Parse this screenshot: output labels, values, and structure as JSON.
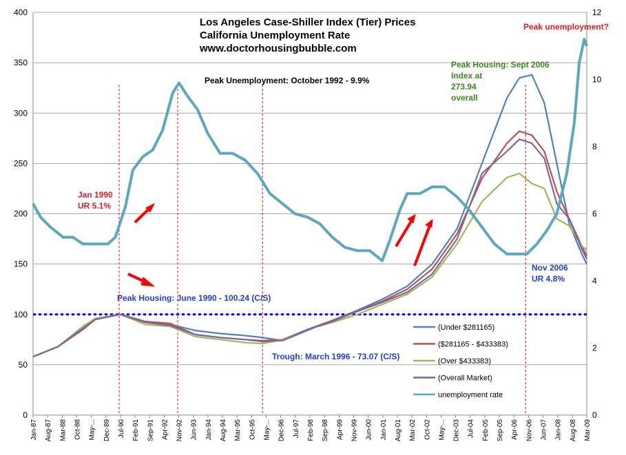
{
  "chart_data": {
    "type": "line",
    "title": [
      "Los Angeles Case-Shiller Index (Tier) Prices",
      "California Unemployment Rate",
      "www.doctorhousingbubble.com"
    ],
    "x_tick_labels": [
      "Jan-87",
      "Aug-87",
      "Mar-88",
      "Oct-88",
      "May-...",
      "Dec-89",
      "Jul-90",
      "Feb-91",
      "Sep-91",
      "Apr-92",
      "Nov-92",
      "Jun-93",
      "Jan-94",
      "Aug-94",
      "Mar-95",
      "Oct-95",
      "May-...",
      "Dec-96",
      "Jul-97",
      "Feb-98",
      "Sep-98",
      "Apr-99",
      "Nov-99",
      "Jun-00",
      "Jan-01",
      "Aug-01",
      "Mar-02",
      "Oct-02",
      "May-...",
      "Dec-03",
      "Jul-04",
      "Feb-05",
      "Sep-05",
      "Apr-06",
      "Nov-06",
      "Jun-07",
      "Jan-08",
      "Aug-08",
      "Mar-09"
    ],
    "y_left": {
      "min": 0,
      "max": 400,
      "ticks": [
        0,
        50,
        100,
        150,
        200,
        250,
        300,
        350,
        400
      ]
    },
    "y_right": {
      "min": 0,
      "max": 12,
      "ticks": [
        0,
        2,
        4,
        6,
        8,
        10,
        12
      ]
    },
    "grid": "horizontal",
    "legend_position": "inside-bottom-right",
    "series": [
      {
        "name": "(Under $281165)",
        "axis": "left",
        "color": "#4f81bd",
        "x": [
          1987.0,
          1988.0,
          1989.0,
          1989.5,
          1990.5,
          1991.5,
          1992.5,
          1993.5,
          1994.5,
          1995.5,
          1996.2,
          1997.0,
          1998.0,
          1999.0,
          2000.0,
          2001.0,
          2002.0,
          2003.0,
          2004.0,
          2005.0,
          2006.0,
          2006.5,
          2007.0,
          2007.5,
          2008.0,
          2008.5,
          2009.0,
          2009.2
        ],
        "values": [
          58,
          68,
          88,
          96,
          100,
          93,
          90,
          84,
          81,
          79,
          77,
          74,
          84,
          94,
          104,
          115,
          128,
          150,
          185,
          250,
          315,
          335,
          338,
          310,
          250,
          190,
          160,
          150
        ]
      },
      {
        "name": "($281165 - $433383)",
        "axis": "left",
        "color": "#c0504d",
        "x": [
          1987.0,
          1988.0,
          1989.0,
          1989.5,
          1990.5,
          1991.5,
          1992.5,
          1993.5,
          1994.5,
          1995.5,
          1996.2,
          1997.0,
          1998.0,
          1999.0,
          2000.0,
          2001.0,
          2002.0,
          2003.0,
          2004.0,
          2005.0,
          2006.0,
          2006.5,
          2007.0,
          2007.5,
          2008.0,
          2008.5,
          2009.0,
          2009.2
        ],
        "values": [
          58,
          68,
          85,
          95,
          100,
          93,
          91,
          80,
          77,
          75,
          74,
          75,
          85,
          94,
          103,
          113,
          125,
          145,
          180,
          235,
          270,
          282,
          278,
          262,
          222,
          195,
          168,
          158
        ]
      },
      {
        "name": "(Over $433383)",
        "axis": "left",
        "color": "#9bbb59",
        "x": [
          1987.0,
          1988.0,
          1989.0,
          1989.5,
          1990.5,
          1991.5,
          1992.5,
          1993.5,
          1994.5,
          1995.5,
          1996.2,
          1997.0,
          1998.0,
          1999.0,
          2000.0,
          2001.0,
          2002.0,
          2003.0,
          2004.0,
          2005.0,
          2006.0,
          2006.5,
          2007.0,
          2007.5,
          2008.0,
          2008.5,
          2009.0,
          2009.2
        ],
        "values": [
          58,
          68,
          88,
          96,
          100,
          90,
          88,
          78,
          75,
          72,
          71,
          75,
          85,
          92,
          100,
          110,
          120,
          137,
          170,
          212,
          236,
          240,
          230,
          225,
          195,
          188,
          168,
          164
        ]
      },
      {
        "name": "(Overall Market)",
        "axis": "left",
        "color": "#8064a2",
        "x": [
          1987.0,
          1988.0,
          1989.0,
          1989.5,
          1990.5,
          1991.5,
          1992.5,
          1993.5,
          1994.5,
          1995.5,
          1996.2,
          1997.0,
          1998.0,
          1999.0,
          2000.0,
          2001.0,
          2002.0,
          2003.0,
          2004.0,
          2005.0,
          2006.0,
          2006.5,
          2007.0,
          2007.5,
          2008.0,
          2008.5,
          2009.0,
          2009.2
        ],
        "values": [
          58,
          68,
          86,
          95,
          100,
          92,
          89,
          80,
          77,
          75,
          73,
          74,
          85,
          93,
          103,
          112,
          122,
          140,
          175,
          240,
          262,
          274,
          270,
          255,
          210,
          195,
          165,
          155
        ]
      },
      {
        "name": "unemployment rate",
        "axis": "right",
        "color": "#4bacc6",
        "x": [
          1987.0,
          1987.3,
          1987.7,
          1988.2,
          1988.6,
          1989.0,
          1989.5,
          1990.0,
          1990.3,
          1990.7,
          1991.0,
          1991.4,
          1991.8,
          1992.2,
          1992.6,
          1992.85,
          1993.2,
          1993.6,
          1994.0,
          1994.5,
          1995.0,
          1995.5,
          1996.0,
          1996.5,
          1997.0,
          1997.5,
          1998.0,
          1998.5,
          1999.0,
          1999.5,
          2000.0,
          2000.5,
          2001.0,
          2001.3,
          2001.7,
          2002.0,
          2002.5,
          2003.0,
          2003.5,
          2004.0,
          2004.5,
          2005.0,
          2005.5,
          2006.0,
          2006.5,
          2006.8,
          2007.2,
          2007.6,
          2008.0,
          2008.4,
          2008.7,
          2008.9,
          2009.1,
          2009.2
        ],
        "values": [
          6.3,
          5.9,
          5.6,
          5.3,
          5.3,
          5.1,
          5.1,
          5.1,
          5.3,
          6.2,
          7.3,
          7.7,
          7.9,
          8.5,
          9.6,
          9.9,
          9.5,
          9.1,
          8.4,
          7.8,
          7.8,
          7.6,
          7.2,
          6.6,
          6.3,
          6.0,
          5.9,
          5.7,
          5.3,
          5.0,
          4.9,
          4.9,
          4.6,
          5.2,
          6.1,
          6.6,
          6.6,
          6.8,
          6.8,
          6.5,
          6.1,
          5.6,
          5.1,
          4.8,
          4.8,
          4.8,
          5.1,
          5.5,
          6.0,
          7.2,
          8.7,
          10.5,
          11.2,
          11.0
        ]
      }
    ],
    "annotations": {
      "peak_unemployment_1992": "Peak Unemployment:  October 1992 - 9.9%",
      "jan_1990_l1": "Jan 1990",
      "jan_1990_l2": "UR 5.1%",
      "peak_housing_1990": "Peak Housing:  June 1990 - 100.24 (C/S)",
      "trough_1996": "Trough:  March 1996 - 73.07 (C/S)",
      "peak_housing_2006_l1": "Peak Housing:  Sept 2006",
      "peak_housing_2006_l2": "Index at",
      "peak_housing_2006_l3": "273.94",
      "peak_housing_2006_l4": "overall",
      "nov_2006_l1": "Nov 2006",
      "nov_2006_l2": "UR 4.8%",
      "peak_unemployment_q": "Peak unemployment?"
    },
    "reference_line_y": 100,
    "vertical_markers_x": [
      1990.45,
      1992.8,
      1996.2,
      2006.75
    ]
  }
}
